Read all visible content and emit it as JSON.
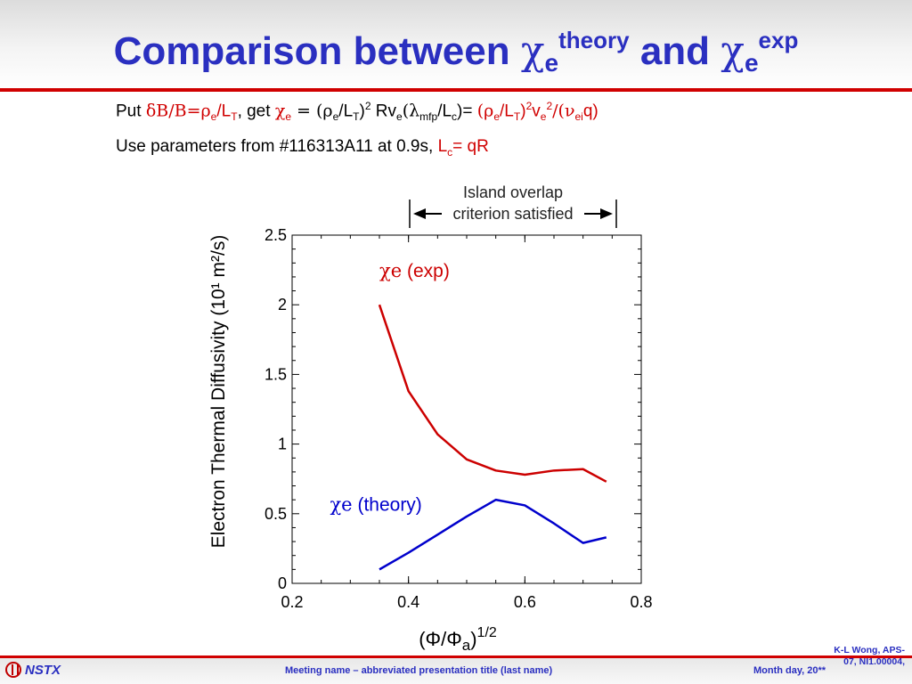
{
  "slide": {
    "title_text": "Comparison between",
    "title_chi": "χ",
    "title_sub": "e",
    "title_sup1": "theory",
    "title_and": "and",
    "title_sup2": "exp"
  },
  "lines": {
    "line1": {
      "put": "Put ",
      "delta_part": "δB/B=ρ",
      "sub_e": "e",
      "slash_L": "/L",
      "sub_T": "T",
      "get": ", get ",
      "chi": "χ",
      "eq": " = (ρ",
      "slash_L2": "/L",
      "close_sq": ")",
      "sq": "2",
      "rv": " Rv",
      "lambda": "(λ",
      "mfp": "mfp",
      "slash_Lc": "/L",
      "c": "c",
      "close_eq": ")= ",
      "red_part_a": "(ρ",
      "red_slash_L": "/L",
      "red_close": ")",
      "red_sq": "2",
      "red_v": "v",
      "red_sq2": "2",
      "red_nu": "/(ν",
      "ei": "ei",
      "red_q": "q)"
    },
    "line2": {
      "text": "Use parameters from #116313A11 at 0.9s, ",
      "red_L": "L",
      "red_c": "c",
      "red_eq": "= qR"
    }
  },
  "chart_data": {
    "type": "line",
    "annotation": "Island overlap criterion satisfied",
    "xlabel_prefix": "(Φ/Φ",
    "xlabel_sub": "a",
    "xlabel_suffix": ")",
    "xlabel_sup": "1/2",
    "ylabel": "Electron Thermal Diffusivity (10¹ m²/s)",
    "xlim": [
      0.2,
      0.8
    ],
    "ylim": [
      0,
      2.5
    ],
    "xticks": [
      "0.2",
      "0.4",
      "0.6",
      "0.8"
    ],
    "yticks": [
      "0",
      "0.5",
      "1",
      "1.5",
      "2",
      "2.5"
    ],
    "series": [
      {
        "name": "χe (exp)",
        "label_chi": "χe",
        "label_text": "(exp)",
        "color": "#cc0000",
        "x": [
          0.35,
          0.4,
          0.45,
          0.5,
          0.55,
          0.6,
          0.65,
          0.7,
          0.74
        ],
        "y": [
          2.0,
          1.38,
          1.07,
          0.89,
          0.81,
          0.78,
          0.81,
          0.82,
          0.73
        ]
      },
      {
        "name": "χe (theory)",
        "label_chi": "χe",
        "label_text": "(theory)",
        "color": "#0000cc",
        "x": [
          0.35,
          0.4,
          0.45,
          0.5,
          0.55,
          0.6,
          0.65,
          0.7,
          0.74
        ],
        "y": [
          0.1,
          0.22,
          0.35,
          0.48,
          0.6,
          0.56,
          0.43,
          0.29,
          0.33
        ]
      }
    ]
  },
  "footer": {
    "logo": "NSTX",
    "meeting": "Meeting name – abbreviated presentation title (last name)",
    "date": "Month day, 20**",
    "ref": "K-L Wong, APS-07, NI1.00004,"
  }
}
